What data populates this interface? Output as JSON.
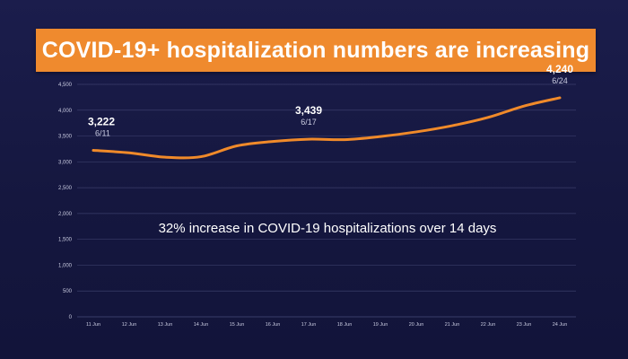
{
  "title": "COVID-19+ hospitalization numbers are increasing",
  "colors": {
    "background": "#15173f",
    "banner": "#ef8a2e",
    "line": "#f08a2a",
    "grid": "#3a3d6a",
    "text": "#ffffff"
  },
  "chart_data": {
    "type": "line",
    "title": "",
    "xlabel": "",
    "ylabel": "",
    "ylim": [
      0,
      4500
    ],
    "yticks": [
      0,
      500,
      1000,
      1500,
      2000,
      2500,
      3000,
      3500,
      4000,
      4500
    ],
    "ytick_labels": [
      "0",
      "500",
      "1,000",
      "1,500",
      "2,000",
      "2,500",
      "3,000",
      "3,500",
      "4,000",
      "4,500"
    ],
    "grid": true,
    "categories": [
      "11 Jun",
      "12 Jun",
      "13 Jun",
      "14 Jun",
      "15 Jun",
      "16 Jun",
      "17 Jun",
      "18 Jun",
      "19 Jun",
      "20 Jun",
      "21 Jun",
      "22 Jun",
      "23 Jun",
      "24 Jun"
    ],
    "series": [
      {
        "values": [
          3222,
          3175,
          3090,
          3100,
          3310,
          3395,
          3439,
          3430,
          3490,
          3580,
          3700,
          3860,
          4080,
          4240
        ]
      }
    ],
    "data_labels": [
      {
        "index": 0,
        "value_text": "3,222",
        "date_text": "6/11"
      },
      {
        "index": 6,
        "value_text": "3,439",
        "date_text": "6/17"
      },
      {
        "index": 13,
        "value_text": "4,240",
        "date_text": "6/24"
      }
    ],
    "annotations": [
      "32% increase in COVID-19 hospitalizations over 14 days"
    ]
  }
}
